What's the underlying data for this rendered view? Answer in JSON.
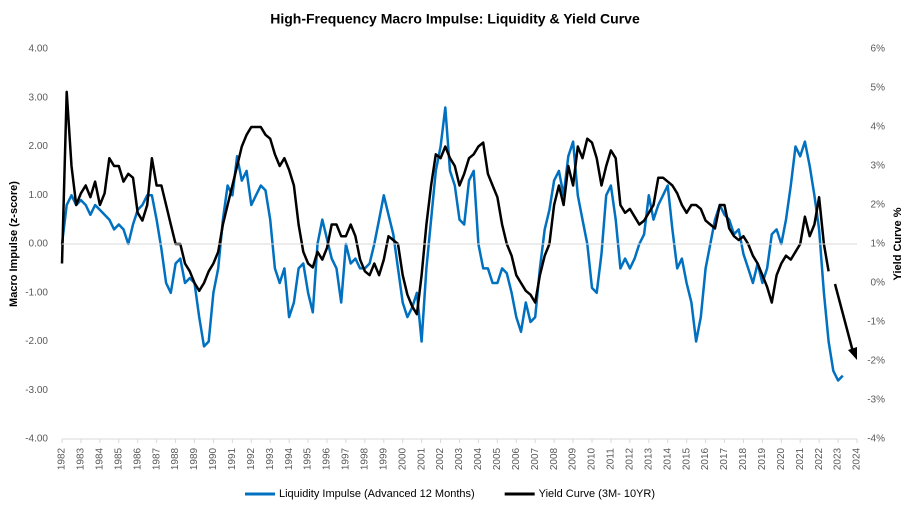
{
  "chart_data": {
    "type": "line",
    "title": "High-Frequency Macro Impulse: Liquidity & Yield Curve",
    "ylabel": "Macro Impulse (z-score)",
    "y2label": "Yield Curve %",
    "xlim": [
      1982,
      2024
    ],
    "xticks": [
      1982,
      1983,
      1984,
      1985,
      1986,
      1987,
      1988,
      1989,
      1990,
      1991,
      1992,
      1993,
      1994,
      1995,
      1996,
      1997,
      1998,
      1999,
      2000,
      2001,
      2002,
      2003,
      2004,
      2005,
      2006,
      2007,
      2008,
      2009,
      2010,
      2011,
      2012,
      2013,
      2014,
      2015,
      2016,
      2017,
      2018,
      2019,
      2020,
      2021,
      2022,
      2023,
      2024
    ],
    "ylim": [
      -4,
      4
    ],
    "yticks": [
      {
        "value": -4,
        "label": "-4.00"
      },
      {
        "value": -3,
        "label": "-3.00"
      },
      {
        "value": -2,
        "label": "-2.00"
      },
      {
        "value": -1,
        "label": "-1.00"
      },
      {
        "value": 0,
        "label": "0.00"
      },
      {
        "value": 1,
        "label": "1.00"
      },
      {
        "value": 2,
        "label": "2.00"
      },
      {
        "value": 3,
        "label": "3.00"
      },
      {
        "value": 4,
        "label": "4.00"
      }
    ],
    "y2lim": [
      -4,
      6
    ],
    "y2ticks": [
      {
        "value": -4,
        "label": "-4%"
      },
      {
        "value": -3,
        "label": "-3%"
      },
      {
        "value": -2,
        "label": "-2%"
      },
      {
        "value": -1,
        "label": "-1%"
      },
      {
        "value": 0,
        "label": "0%"
      },
      {
        "value": 1,
        "label": "1%"
      },
      {
        "value": 2,
        "label": "2%"
      },
      {
        "value": 3,
        "label": "3%"
      },
      {
        "value": 4,
        "label": "4%"
      },
      {
        "value": 5,
        "label": "5%"
      },
      {
        "value": 6,
        "label": "6%"
      }
    ],
    "x": [
      1982,
      1982.25,
      1982.5,
      1982.75,
      1983,
      1983.25,
      1983.5,
      1983.75,
      1984,
      1984.25,
      1984.5,
      1984.75,
      1985,
      1985.25,
      1985.5,
      1985.75,
      1986,
      1986.25,
      1986.5,
      1986.75,
      1987,
      1987.25,
      1987.5,
      1987.75,
      1988,
      1988.25,
      1988.5,
      1988.75,
      1989,
      1989.25,
      1989.5,
      1989.75,
      1990,
      1990.25,
      1990.5,
      1990.75,
      1991,
      1991.25,
      1991.5,
      1991.75,
      1992,
      1992.25,
      1992.5,
      1992.75,
      1993,
      1993.25,
      1993.5,
      1993.75,
      1994,
      1994.25,
      1994.5,
      1994.75,
      1995,
      1995.25,
      1995.5,
      1995.75,
      1996,
      1996.25,
      1996.5,
      1996.75,
      1997,
      1997.25,
      1997.5,
      1997.75,
      1998,
      1998.25,
      1998.5,
      1998.75,
      1999,
      1999.25,
      1999.5,
      1999.75,
      2000,
      2000.25,
      2000.5,
      2000.75,
      2001,
      2001.25,
      2001.5,
      2001.75,
      2002,
      2002.25,
      2002.5,
      2002.75,
      2003,
      2003.25,
      2003.5,
      2003.75,
      2004,
      2004.25,
      2004.5,
      2004.75,
      2005,
      2005.25,
      2005.5,
      2005.75,
      2006,
      2006.25,
      2006.5,
      2006.75,
      2007,
      2007.25,
      2007.5,
      2007.75,
      2008,
      2008.25,
      2008.5,
      2008.75,
      2009,
      2009.25,
      2009.5,
      2009.75,
      2010,
      2010.25,
      2010.5,
      2010.75,
      2011,
      2011.25,
      2011.5,
      2011.75,
      2012,
      2012.25,
      2012.5,
      2012.75,
      2013,
      2013.25,
      2013.5,
      2013.75,
      2014,
      2014.25,
      2014.5,
      2014.75,
      2015,
      2015.25,
      2015.5,
      2015.75,
      2016,
      2016.25,
      2016.5,
      2016.75,
      2017,
      2017.25,
      2017.5,
      2017.75,
      2018,
      2018.25,
      2018.5,
      2018.75,
      2019,
      2019.25,
      2019.5,
      2019.75,
      2020,
      2020.25,
      2020.5,
      2020.75,
      2021,
      2021.25,
      2021.5,
      2021.75,
      2022,
      2022.25,
      2022.5,
      2022.75,
      2023,
      2023.25
    ],
    "series": [
      {
        "name": "Liquidity Impulse (Advanced 12 Months)",
        "color": "#0070c0",
        "values": [
          0.0,
          0.8,
          1.0,
          0.8,
          0.9,
          0.8,
          0.6,
          0.8,
          0.7,
          0.6,
          0.5,
          0.3,
          0.4,
          0.3,
          0.0,
          0.4,
          0.7,
          0.8,
          1.0,
          1.0,
          0.5,
          -0.1,
          -0.8,
          -1.0,
          -0.4,
          -0.3,
          -0.8,
          -0.7,
          -0.8,
          -1.5,
          -2.1,
          -2.0,
          -1.0,
          -0.5,
          0.5,
          1.2,
          1.0,
          1.8,
          1.3,
          1.5,
          0.8,
          1.0,
          1.2,
          1.1,
          0.5,
          -0.5,
          -0.8,
          -0.5,
          -1.5,
          -1.2,
          -0.5,
          -0.4,
          -1.0,
          -1.4,
          0.0,
          0.5,
          0.1,
          -0.3,
          -0.5,
          -1.2,
          0.0,
          -0.4,
          -0.3,
          -0.5,
          -0.5,
          -0.4,
          0.0,
          0.5,
          1.0,
          0.6,
          0.2,
          -0.5,
          -1.2,
          -1.5,
          -1.3,
          -1.0,
          -2.0,
          -0.5,
          0.5,
          1.5,
          2.0,
          2.8,
          1.5,
          1.2,
          0.5,
          0.4,
          1.3,
          1.5,
          0.0,
          -0.5,
          -0.5,
          -0.8,
          -0.8,
          -0.5,
          -0.6,
          -1.0,
          -1.5,
          -1.8,
          -1.2,
          -1.6,
          -1.5,
          -0.5,
          0.3,
          0.7,
          1.3,
          1.5,
          1.0,
          1.8,
          2.1,
          1.0,
          0.5,
          0.0,
          -0.9,
          -1.0,
          -0.2,
          1.0,
          1.2,
          0.5,
          -0.5,
          -0.3,
          -0.5,
          -0.3,
          0.0,
          0.2,
          1.0,
          0.5,
          0.8,
          1.0,
          1.2,
          0.3,
          -0.5,
          -0.3,
          -0.8,
          -1.2,
          -2.0,
          -1.5,
          -0.5,
          0.0,
          0.5,
          0.8,
          0.6,
          0.5,
          0.2,
          0.3,
          -0.2,
          -0.5,
          -0.8,
          -0.4,
          -0.8,
          -0.5,
          0.2,
          0.3,
          0.0,
          0.5,
          1.2,
          2.0,
          1.8,
          2.1,
          1.6,
          1.0,
          0.3,
          -1.0,
          -2.0,
          -2.6,
          -2.8,
          -2.7
        ]
      },
      {
        "name": "Yield Curve (3M- 10YR)",
        "color": "#000000",
        "axis": "y2",
        "values": [
          0.5,
          4.9,
          3.0,
          2.0,
          2.3,
          2.5,
          2.2,
          2.6,
          2.0,
          2.3,
          3.2,
          3.0,
          3.0,
          2.6,
          2.8,
          2.7,
          1.8,
          1.6,
          2.0,
          3.2,
          2.5,
          2.5,
          2.0,
          1.5,
          1.0,
          1.0,
          0.5,
          0.3,
          0.0,
          -0.2,
          0.0,
          0.3,
          0.5,
          0.8,
          1.5,
          2.0,
          2.5,
          3.0,
          3.5,
          3.8,
          4.0,
          4.0,
          4.0,
          3.8,
          3.7,
          3.3,
          3.0,
          3.2,
          2.9,
          2.5,
          1.5,
          0.8,
          0.5,
          0.4,
          0.8,
          0.6,
          0.9,
          1.5,
          1.5,
          1.2,
          1.2,
          1.5,
          1.2,
          0.6,
          0.3,
          0.2,
          0.5,
          0.2,
          0.6,
          1.2,
          1.1,
          1.0,
          0.2,
          -0.3,
          -0.6,
          -0.8,
          0.2,
          1.5,
          2.5,
          3.3,
          3.2,
          3.5,
          3.2,
          3.0,
          2.5,
          2.8,
          3.2,
          3.3,
          3.5,
          3.6,
          2.8,
          2.5,
          2.2,
          1.5,
          1.0,
          0.7,
          0.2,
          0.0,
          -0.2,
          -0.3,
          -0.5,
          0.2,
          0.7,
          1.0,
          2.0,
          2.5,
          2.0,
          3.0,
          2.5,
          3.5,
          3.2,
          3.7,
          3.6,
          3.2,
          2.5,
          3.0,
          3.4,
          3.2,
          2.0,
          1.8,
          1.9,
          1.7,
          1.5,
          1.6,
          1.8,
          2.0,
          2.7,
          2.7,
          2.6,
          2.5,
          2.3,
          2.0,
          1.8,
          2.0,
          2.0,
          1.9,
          1.6,
          1.5,
          1.4,
          2.0,
          2.0,
          1.4,
          1.2,
          1.1,
          1.2,
          1.0,
          0.7,
          0.5,
          0.2,
          -0.1,
          -0.5,
          0.2,
          0.5,
          0.7,
          0.6,
          0.8,
          1.0,
          1.7,
          1.2,
          1.5,
          2.2,
          1.0,
          0.3,
          null,
          null,
          null
        ]
      }
    ]
  }
}
